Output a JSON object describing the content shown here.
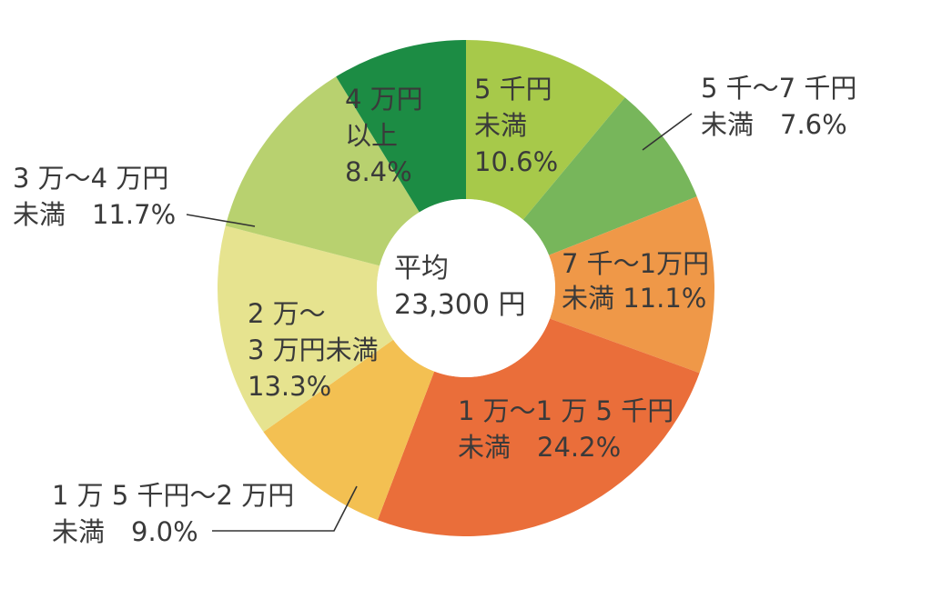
{
  "chart_data": {
    "type": "pie",
    "donut": true,
    "center_label": {
      "line1": "平均",
      "line2": "23,300 円"
    },
    "slices": [
      {
        "lines": [
          "5 千円",
          "未満",
          "10.6%"
        ],
        "value": 10.6,
        "color": "#a7c94a"
      },
      {
        "lines": [
          "5 千〜7 千円",
          "未満　7.6%"
        ],
        "value": 7.6,
        "color": "#77b65b"
      },
      {
        "lines": [
          "7 千〜1万円",
          "未満 11.1%"
        ],
        "value": 11.1,
        "color": "#ef9848"
      },
      {
        "lines": [
          "1 万〜1 万 5 千円",
          "未満　24.2%"
        ],
        "value": 24.2,
        "color": "#ea6e3a"
      },
      {
        "lines": [
          "1 万 5 千円〜2 万円",
          "未満　9.0%"
        ],
        "value": 9.0,
        "color": "#f3c052"
      },
      {
        "lines": [
          "2 万〜",
          "3 万円未満",
          "13.3%"
        ],
        "value": 13.3,
        "color": "#e6e38f"
      },
      {
        "lines": [
          "3 万〜4 万円",
          "未満　11.7%"
        ],
        "value": 11.7,
        "color": "#b8d16f"
      },
      {
        "lines": [
          "4 万円",
          "以上",
          "8.4%"
        ],
        "value": 8.4,
        "color": "#1c8c44"
      }
    ]
  }
}
